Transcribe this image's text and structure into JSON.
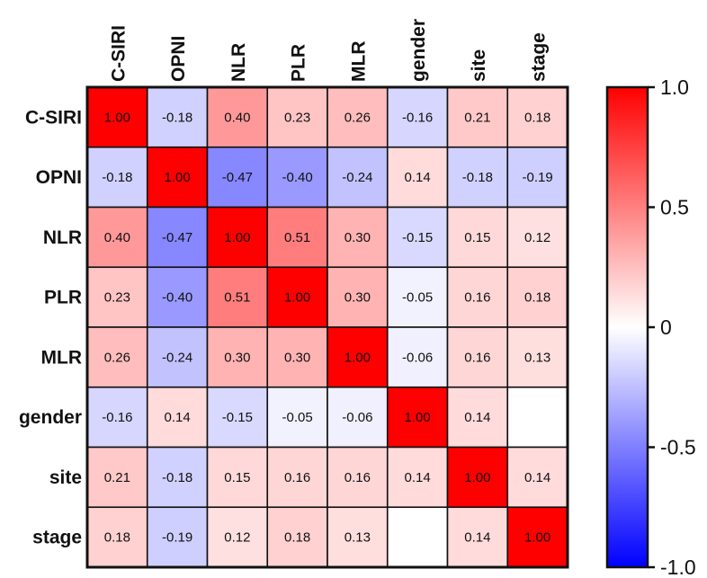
{
  "chart_data": {
    "type": "heatmap",
    "title": "",
    "variables": [
      "C-SIRI",
      "OPNI",
      "NLR",
      "PLR",
      "MLR",
      "gender",
      "site",
      "stage"
    ],
    "matrix": [
      [
        1.0,
        -0.18,
        0.4,
        0.23,
        0.26,
        -0.16,
        0.21,
        0.18
      ],
      [
        -0.18,
        1.0,
        -0.47,
        -0.4,
        -0.24,
        0.14,
        -0.18,
        -0.19
      ],
      [
        0.4,
        -0.47,
        1.0,
        0.51,
        0.3,
        -0.15,
        0.15,
        0.12
      ],
      [
        0.23,
        -0.4,
        0.51,
        1.0,
        0.3,
        -0.05,
        0.16,
        0.18
      ],
      [
        0.26,
        -0.24,
        0.3,
        0.3,
        1.0,
        -0.06,
        0.16,
        0.13
      ],
      [
        -0.16,
        0.14,
        -0.15,
        -0.05,
        -0.06,
        1.0,
        0.14,
        null
      ],
      [
        0.21,
        -0.18,
        0.15,
        0.16,
        0.16,
        0.14,
        1.0,
        0.14
      ],
      [
        0.18,
        -0.19,
        0.12,
        0.18,
        0.13,
        null,
        0.14,
        1.0
      ]
    ],
    "colorbar": {
      "range": [
        -1.0,
        1.0
      ],
      "ticks": [
        1.0,
        0.5,
        0,
        -0.5,
        -1.0
      ],
      "tick_labels": [
        "1.0",
        "0.5",
        "0",
        "-0.5",
        "-1.0"
      ],
      "colors": {
        "negative": "#0000ff",
        "zero": "#ffffff",
        "positive": "#ff0000"
      }
    }
  }
}
